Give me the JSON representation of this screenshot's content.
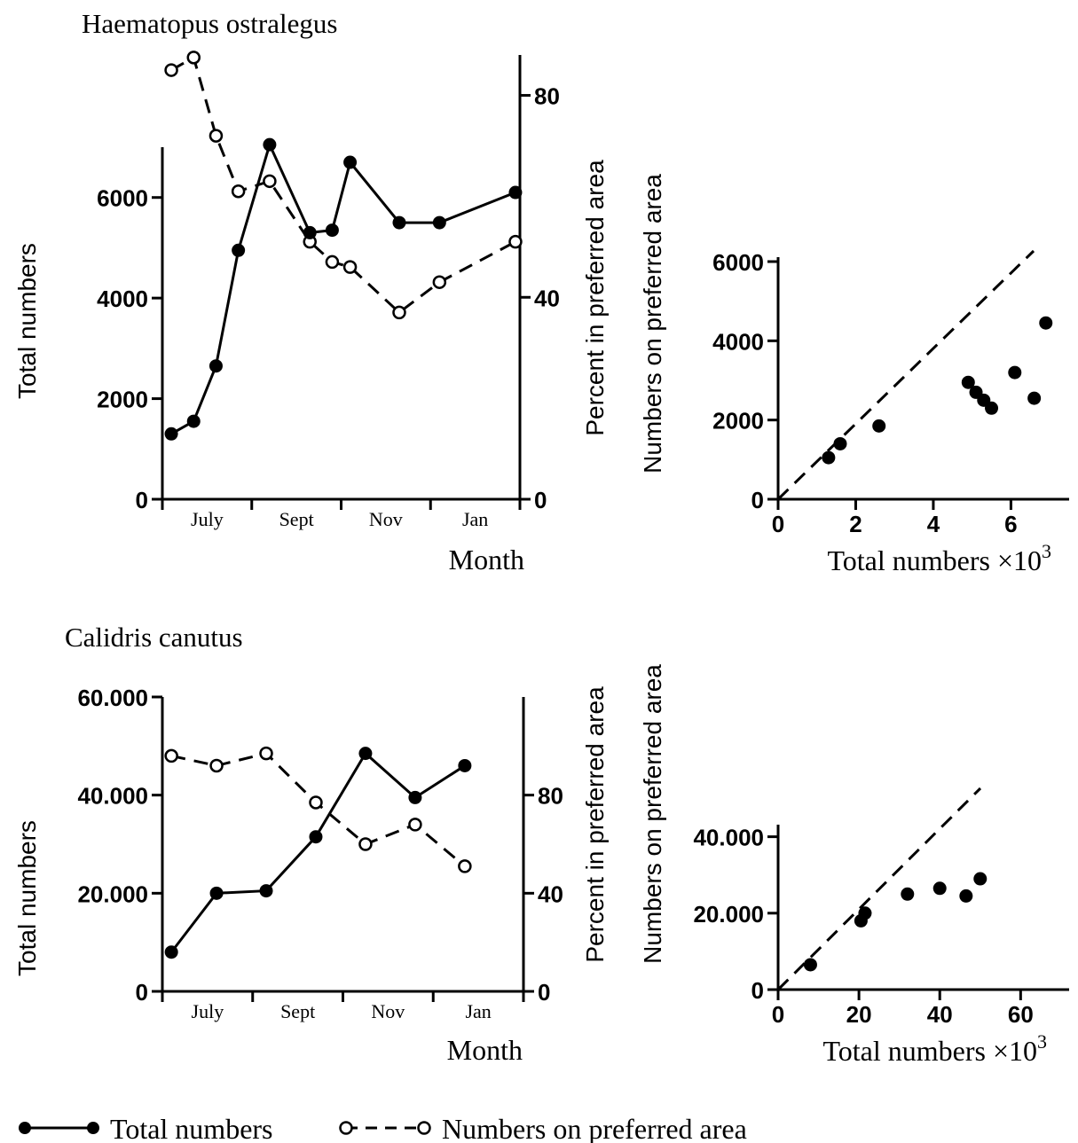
{
  "chart_data": [
    {
      "type": "line",
      "title": "Haematopus ostralegus",
      "xlabel": "Month",
      "ylabel": "Total numbers",
      "y2label": "Percent in preferred area",
      "x_ticks": [
        "July",
        "Sept",
        "Nov",
        "Jan"
      ],
      "ylim": [
        0,
        7000
      ],
      "y_ticks": [
        "0",
        "2000",
        "4000",
        "6000"
      ],
      "y2lim": [
        0,
        88
      ],
      "y2_ticks": [
        "0",
        "40",
        "80"
      ],
      "series": [
        {
          "name": "Total numbers",
          "style": "solid-filled",
          "x": [
            0.1,
            0.35,
            0.6,
            0.85,
            1.2,
            1.65,
            1.9,
            2.1,
            2.65,
            3.1,
            3.95
          ],
          "values": [
            1300,
            1550,
            2650,
            4950,
            7050,
            5300,
            5350,
            6700,
            5500,
            5500,
            6100
          ]
        },
        {
          "name": "Numbers on preferred area",
          "style": "dashed-open",
          "x": [
            0.1,
            0.35,
            0.6,
            0.85,
            1.2,
            1.65,
            1.9,
            2.1,
            2.65,
            3.1,
            3.95
          ],
          "values": [
            85,
            87.5,
            72,
            61,
            63,
            51,
            47,
            46,
            37,
            43,
            51
          ]
        }
      ]
    },
    {
      "type": "scatter",
      "xlabel": "Total numbers ×10",
      "xlabel_exponent": "3",
      "ylabel": "Numbers on preferred area",
      "xlim": [
        0,
        7.5
      ],
      "ylim": [
        0,
        6000
      ],
      "x_ticks": [
        "0",
        "2",
        "4",
        "6"
      ],
      "y_ticks": [
        "0",
        "2000",
        "4000",
        "6000"
      ],
      "points": [
        [
          1.3,
          1050
        ],
        [
          1.6,
          1400
        ],
        [
          2.6,
          1850
        ],
        [
          4.9,
          2950
        ],
        [
          5.1,
          2700
        ],
        [
          5.3,
          2500
        ],
        [
          5.5,
          2300
        ],
        [
          6.1,
          3200
        ],
        [
          6.6,
          2550
        ],
        [
          6.9,
          4450
        ]
      ],
      "reference_line": "dashed y=x"
    },
    {
      "type": "line",
      "title": "Calidris canutus",
      "xlabel": "Month",
      "ylabel": "Total numbers",
      "y2label": "Percent in preferred area",
      "x_ticks": [
        "July",
        "Sept",
        "Nov",
        "Jan"
      ],
      "ylim": [
        0,
        60000
      ],
      "y_ticks": [
        "0",
        "20.000",
        "40.000",
        "60.000"
      ],
      "y2lim": [
        0,
        120
      ],
      "y2_ticks": [
        "0",
        "40",
        "80"
      ],
      "series": [
        {
          "name": "Total numbers",
          "style": "solid-filled",
          "x": [
            0.1,
            0.6,
            1.15,
            1.7,
            2.25,
            2.8,
            3.35
          ],
          "values": [
            8000,
            20000,
            20500,
            31500,
            48500,
            39500,
            46000
          ]
        },
        {
          "name": "Numbers on preferred area",
          "style": "dashed-open",
          "x": [
            0.1,
            0.6,
            1.15,
            1.7,
            2.25,
            2.8,
            3.35
          ],
          "values": [
            96,
            92,
            97,
            77,
            60,
            68,
            51
          ]
        }
      ]
    },
    {
      "type": "scatter",
      "xlabel": "Total numbers ×10",
      "xlabel_exponent": "3",
      "ylabel": "Numbers on preferred area",
      "xlim": [
        0,
        72
      ],
      "ylim": [
        0,
        42000
      ],
      "x_ticks": [
        "0",
        "20",
        "40",
        "60"
      ],
      "y_ticks": [
        "0",
        "20.000",
        "40.000"
      ],
      "points": [
        [
          8,
          6500
        ],
        [
          20.5,
          18000
        ],
        [
          21.5,
          20000
        ],
        [
          32,
          25000
        ],
        [
          40,
          26500
        ],
        [
          46.5,
          24500
        ],
        [
          50,
          29000
        ]
      ],
      "reference_line": "dashed y=x"
    }
  ],
  "legend": {
    "solid_label": "Total numbers",
    "dashed_label": "Numbers on preferred area"
  }
}
